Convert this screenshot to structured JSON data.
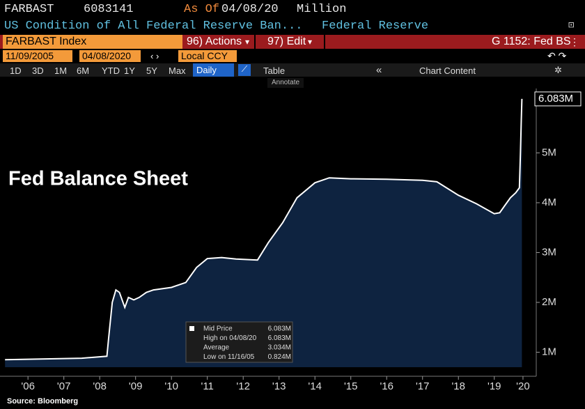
{
  "header": {
    "ticker": "FARBAST",
    "value": "6083141",
    "as_of_label": "As Of",
    "date": "04/08/20",
    "unit": "Million",
    "description": "US Condition of All Federal Reserve Ban...",
    "source_name": "Federal Reserve"
  },
  "toolbar": {
    "security": "FARBAST Index",
    "actions": "96) Actions",
    "edit": "97) Edit",
    "function": "G 1152: Fed BS",
    "start_date": "11/09/2005",
    "end_date": "04/08/2020",
    "currency": "Local CCY",
    "periods": [
      "1D",
      "3D",
      "1M",
      "6M",
      "YTD",
      "1Y",
      "5Y",
      "Max"
    ],
    "frequency": "Daily",
    "table": "Table",
    "chart_content": "Chart Content",
    "annotate": "Annotate"
  },
  "chart_data": {
    "type": "area",
    "title": "Fed Balance Sheet",
    "source": "Source: Bloomberg",
    "color": "#ffffff",
    "fill_color": "#0e2340",
    "grid": false,
    "x": [
      2005.86,
      2008.0,
      2008.7,
      2008.75,
      2008.85,
      2008.95,
      2009.05,
      2009.2,
      2009.3,
      2009.45,
      2009.6,
      2009.8,
      2010.0,
      2010.5,
      2010.9,
      2011.2,
      2011.5,
      2011.9,
      2012.3,
      2012.9,
      2013.2,
      2013.6,
      2014.0,
      2014.5,
      2014.9,
      2015.5,
      2016.5,
      2017.5,
      2017.9,
      2018.5,
      2019.0,
      2019.5,
      2019.65,
      2019.8,
      2019.95,
      2020.1,
      2020.2,
      2020.23,
      2020.25,
      2020.27
    ],
    "values": [
      0.85,
      0.88,
      0.92,
      1.3,
      2.0,
      2.25,
      2.2,
      1.9,
      2.1,
      2.05,
      2.1,
      2.2,
      2.25,
      2.3,
      2.4,
      2.7,
      2.88,
      2.9,
      2.87,
      2.85,
      3.2,
      3.6,
      4.1,
      4.4,
      4.5,
      4.48,
      4.47,
      4.45,
      4.42,
      4.15,
      3.98,
      3.78,
      3.8,
      3.95,
      4.1,
      4.2,
      4.3,
      5.0,
      5.6,
      6.083
    ],
    "last_price": {
      "value": 6.083,
      "label": "6.083M"
    },
    "xlim": [
      2005.72,
      2020.67
    ],
    "xticks": [
      {
        "value": 2006.5,
        "label": "'06"
      },
      {
        "value": 2007.5,
        "label": "'07"
      },
      {
        "value": 2008.5,
        "label": "'08"
      },
      {
        "value": 2009.5,
        "label": "'09"
      },
      {
        "value": 2010.5,
        "label": "'10"
      },
      {
        "value": 2011.5,
        "label": "'11"
      },
      {
        "value": 2012.5,
        "label": "'12"
      },
      {
        "value": 2013.5,
        "label": "'13"
      },
      {
        "value": 2014.5,
        "label": "'14"
      },
      {
        "value": 2015.5,
        "label": "'15"
      },
      {
        "value": 2016.5,
        "label": "'16"
      },
      {
        "value": 2017.5,
        "label": "'17"
      },
      {
        "value": 2018.5,
        "label": "'18"
      },
      {
        "value": 2019.5,
        "label": "'19"
      },
      {
        "value": 2020.3,
        "label": "'20"
      }
    ],
    "ylim": [
      0.7,
      6.25
    ],
    "yticks": [
      {
        "value": 1,
        "label": "1M"
      },
      {
        "value": 2,
        "label": "2M"
      },
      {
        "value": 3,
        "label": "3M"
      },
      {
        "value": 4,
        "label": "4M"
      },
      {
        "value": 5,
        "label": "5M"
      }
    ],
    "stats": [
      {
        "label": "Mid Price",
        "value": "6.083M"
      },
      {
        "label": "High on 04/08/20",
        "value": "6.083M"
      },
      {
        "label": "Average",
        "value": "3.034M"
      },
      {
        "label": "Low on 11/16/05",
        "value": "0.824M"
      }
    ]
  }
}
